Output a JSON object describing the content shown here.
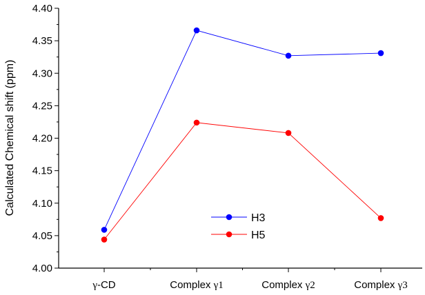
{
  "chart_data": {
    "type": "line",
    "categories": [
      {
        "greek": "γ",
        "text": "-CD"
      },
      {
        "greek": "",
        "text": "Complex ",
        "suffix": "γ1"
      },
      {
        "greek": "",
        "text": "Complex ",
        "suffix": "γ2"
      },
      {
        "greek": "",
        "text": "Complex ",
        "suffix": "γ3"
      }
    ],
    "series": [
      {
        "name": "H3",
        "color": "#0000ff",
        "values": [
          4.059,
          4.366,
          4.327,
          4.331
        ]
      },
      {
        "name": "H5",
        "color": "#ff0000",
        "values": [
          4.044,
          4.224,
          4.208,
          4.077
        ]
      }
    ],
    "ylabel": "Calculated Chemical shift (ppm)",
    "ylim": [
      4.0,
      4.4
    ],
    "yticks": [
      "4.00",
      "4.05",
      "4.10",
      "4.15",
      "4.20",
      "4.25",
      "4.30",
      "4.35",
      "4.40"
    ],
    "grid": false,
    "legend_position": "bottom-center"
  }
}
